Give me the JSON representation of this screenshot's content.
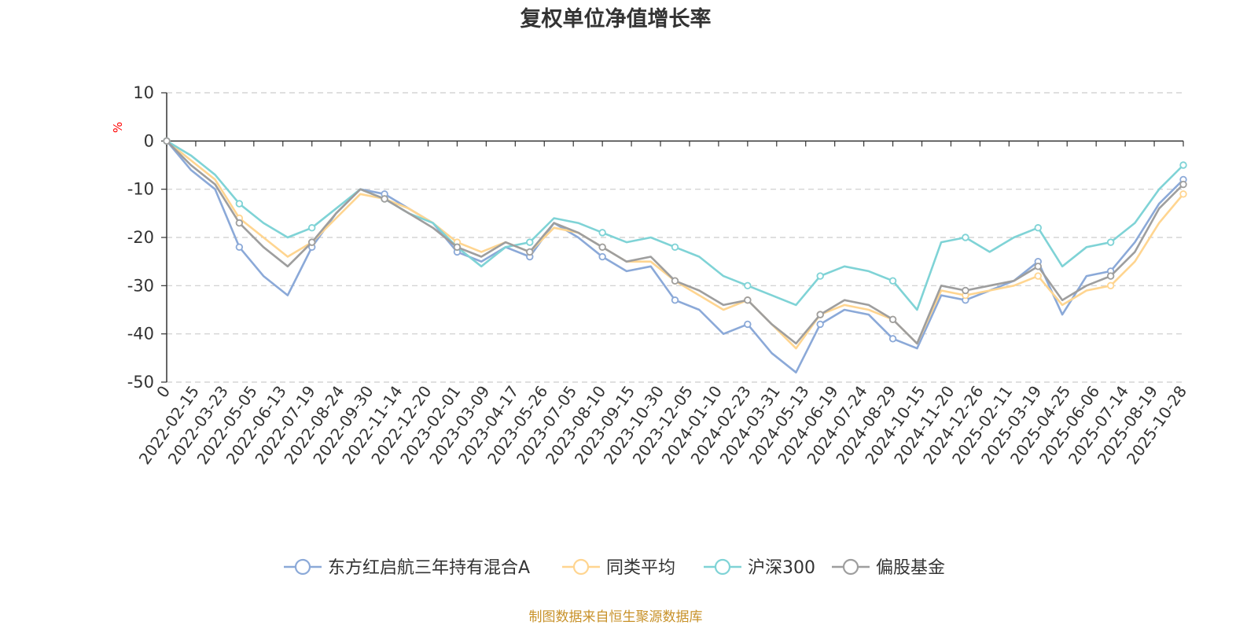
{
  "chart_data": {
    "type": "line",
    "title": "复权单位净值增长率",
    "ylabel": "%",
    "ylim": [
      -50,
      10
    ],
    "yticks": [
      10,
      0,
      -10,
      -20,
      -30,
      -40,
      -50
    ],
    "x_tick_labels": [
      "0",
      "2022-02-15",
      "2022-03-23",
      "2022-05-05",
      "2022-06-13",
      "2022-07-19",
      "2022-08-24",
      "2022-09-30",
      "2022-11-14",
      "2022-12-20",
      "2023-02-01",
      "2023-03-09",
      "2023-04-17",
      "2023-05-26",
      "2023-07-05",
      "2023-08-10",
      "2023-09-15",
      "2023-10-30",
      "2023-12-05",
      "2024-01-10",
      "2024-02-23",
      "2024-03-31",
      "2024-05-13",
      "2024-06-19",
      "2024-07-24",
      "2024-08-29",
      "2024-10-15",
      "2024-11-20",
      "2024-12-26",
      "2025-02-11",
      "2025-03-19",
      "2025-04-25",
      "2025-06-06",
      "2025-07-14",
      "2025-08-19",
      "2025-10-28"
    ],
    "series": [
      {
        "name": "东方红启航三年持有混合A",
        "color": "#8BA9D8",
        "values": [
          0,
          -6,
          -10,
          -22,
          -28,
          -32,
          -22,
          -15,
          -10,
          -11,
          -14,
          -17,
          -23,
          -25,
          -22,
          -24,
          -17,
          -20,
          -24,
          -27,
          -26,
          -33,
          -35,
          -40,
          -38,
          -44,
          -48,
          -38,
          -35,
          -36,
          -41,
          -43,
          -32,
          -33,
          -31,
          -29,
          -25,
          -36,
          -28,
          -27,
          -21,
          -13,
          -8
        ]
      },
      {
        "name": "同类平均",
        "color": "#FFD590",
        "values": [
          0,
          -4,
          -8,
          -16,
          -20,
          -24,
          -21,
          -16,
          -11,
          -12,
          -14,
          -17,
          -21,
          -23,
          -21,
          -23,
          -18,
          -19,
          -22,
          -25,
          -25,
          -29,
          -32,
          -35,
          -33,
          -38,
          -43,
          -36,
          -34,
          -35,
          -37,
          -42,
          -31,
          -32,
          -31,
          -30,
          -28,
          -34,
          -31,
          -30,
          -25,
          -17,
          -11
        ]
      },
      {
        "name": "沪深300",
        "color": "#7FD3D6",
        "values": [
          0,
          -3,
          -7,
          -13,
          -17,
          -20,
          -18,
          -14,
          -10,
          -12,
          -15,
          -17,
          -22,
          -26,
          -22,
          -21,
          -16,
          -17,
          -19,
          -21,
          -20,
          -22,
          -24,
          -28,
          -30,
          -32,
          -34,
          -28,
          -26,
          -27,
          -29,
          -35,
          -21,
          -20,
          -23,
          -20,
          -18,
          -26,
          -22,
          -21,
          -17,
          -10,
          -5
        ]
      },
      {
        "name": "偏股基金",
        "color": "#9E9E9E",
        "values": [
          0,
          -5,
          -9,
          -17,
          -22,
          -26,
          -21,
          -15,
          -10,
          -12,
          -15,
          -18,
          -22,
          -24,
          -21,
          -23,
          -17,
          -19,
          -22,
          -25,
          -24,
          -29,
          -31,
          -34,
          -33,
          -38,
          -42,
          -36,
          -33,
          -34,
          -37,
          -42,
          -30,
          -31,
          -30,
          -29,
          -26,
          -33,
          -30,
          -28,
          -23,
          -14,
          -9
        ]
      }
    ],
    "legend_position": "bottom-center",
    "grid": true
  },
  "source": {
    "text": "制图数据来自恒生聚源数据库",
    "color": "#C8922A"
  }
}
